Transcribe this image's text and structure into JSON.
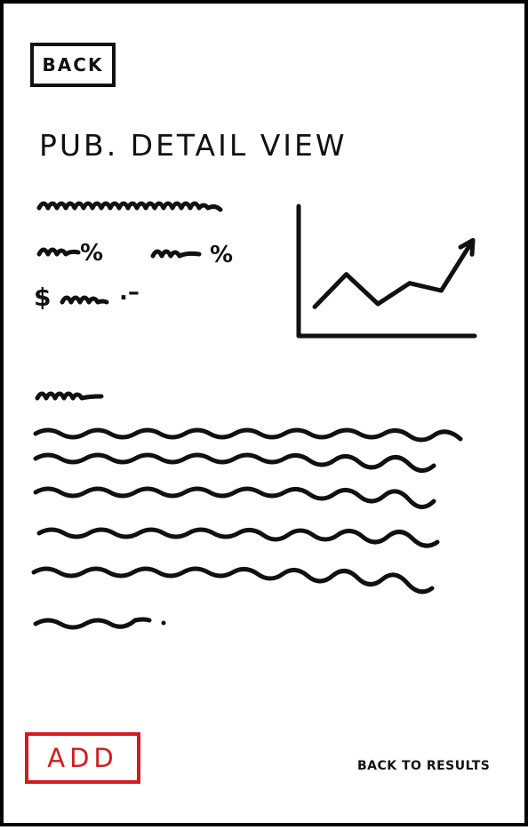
{
  "header": {
    "back_label": "BACK"
  },
  "page": {
    "title": "PUB. DETAIL VIEW"
  },
  "stats": {
    "percent_symbol_1": "%",
    "percent_symbol_2": "%",
    "dollar_symbol": "$",
    "dollar_suffix": ".–"
  },
  "chart_data": {
    "type": "line",
    "x": [
      1,
      2,
      3,
      4,
      5,
      6
    ],
    "values": [
      1,
      3.2,
      1.2,
      2.6,
      2.1,
      5.5
    ],
    "grid": false,
    "arrow_at_end": true
  },
  "footer": {
    "add_label": "ADD",
    "back_to_results_label": "BACK TO RESULTS"
  },
  "colors": {
    "accent": "#d41b1b",
    "ink": "#111111"
  }
}
